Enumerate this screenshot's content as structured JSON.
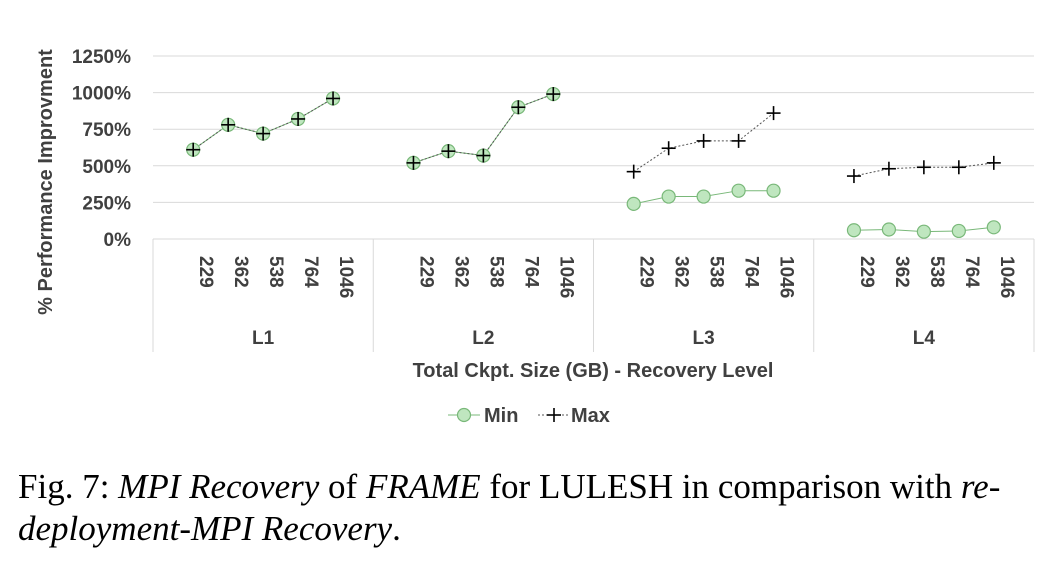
{
  "chart_data": {
    "type": "line",
    "ylabel": "% Performance Improvment",
    "xlabel": "Total Ckpt. Size (GB) - Recovery Level",
    "y_ticks": [
      "0%",
      "250%",
      "500%",
      "750%",
      "1000%",
      "1250%"
    ],
    "ylim": [
      0,
      1250
    ],
    "grid": true,
    "legend_position": "bottom",
    "groups": [
      {
        "name": "L1",
        "categories": [
          "229",
          "362",
          "538",
          "764",
          "1046"
        ]
      },
      {
        "name": "L2",
        "categories": [
          "229",
          "362",
          "538",
          "764",
          "1046"
        ]
      },
      {
        "name": "L3",
        "categories": [
          "229",
          "362",
          "538",
          "764",
          "1046"
        ]
      },
      {
        "name": "L4",
        "categories": [
          "229",
          "362",
          "538",
          "764",
          "1046"
        ]
      }
    ],
    "series": [
      {
        "name": "Min",
        "color": "#92d391",
        "values": [
          [
            610,
            780,
            720,
            820,
            960
          ],
          [
            520,
            600,
            570,
            900,
            990
          ],
          [
            240,
            290,
            290,
            330,
            330
          ],
          [
            60,
            65,
            50,
            55,
            80
          ]
        ]
      },
      {
        "name": "Max",
        "color": "#000000",
        "values": [
          [
            610,
            780,
            720,
            820,
            960
          ],
          [
            520,
            600,
            570,
            900,
            990
          ],
          [
            460,
            620,
            670,
            670,
            860
          ],
          [
            430,
            480,
            490,
            490,
            520
          ]
        ]
      }
    ]
  },
  "caption": {
    "prefix": "Fig. 7: ",
    "italic1": "MPI Recovery",
    "mid1": " of ",
    "italic2": "FRAME",
    "mid2": " for LULESH in comparison with ",
    "italic3": "re-deployment-MPI Recovery",
    "suffix": "."
  }
}
